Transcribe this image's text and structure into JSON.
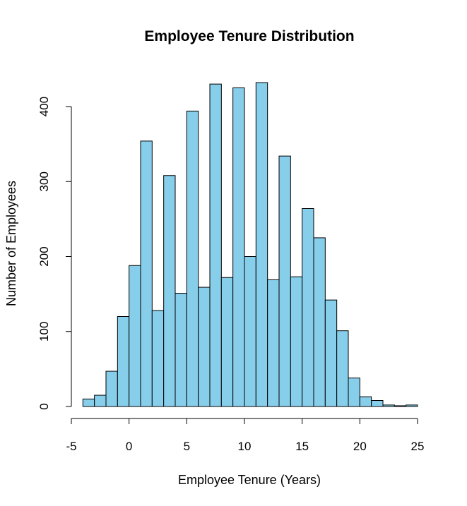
{
  "chart_data": {
    "type": "bar",
    "title": "Employee Tenure Distribution",
    "xlabel": "Employee Tenure (Years)",
    "ylabel": "Number of Employees",
    "bar_color": "#87ceeb",
    "xlim": [
      -5,
      25
    ],
    "ylim": [
      0,
      430
    ],
    "xticks": [
      -5,
      0,
      5,
      10,
      15,
      20,
      25
    ],
    "yticks": [
      0,
      100,
      200,
      300,
      400
    ],
    "bin_width": 1,
    "bins": [
      {
        "start": -4,
        "value": 10
      },
      {
        "start": -3,
        "value": 15
      },
      {
        "start": -2,
        "value": 47
      },
      {
        "start": -1,
        "value": 120
      },
      {
        "start": 0,
        "value": 188
      },
      {
        "start": 1,
        "value": 354
      },
      {
        "start": 2,
        "value": 128
      },
      {
        "start": 3,
        "value": 308
      },
      {
        "start": 4,
        "value": 151
      },
      {
        "start": 5,
        "value": 394
      },
      {
        "start": 6,
        "value": 159
      },
      {
        "start": 7,
        "value": 430
      },
      {
        "start": 8,
        "value": 172
      },
      {
        "start": 9,
        "value": 425
      },
      {
        "start": 10,
        "value": 200
      },
      {
        "start": 11,
        "value": 432
      },
      {
        "start": 12,
        "value": 169
      },
      {
        "start": 13,
        "value": 334
      },
      {
        "start": 14,
        "value": 173
      },
      {
        "start": 15,
        "value": 264
      },
      {
        "start": 16,
        "value": 225
      },
      {
        "start": 17,
        "value": 142
      },
      {
        "start": 18,
        "value": 101
      },
      {
        "start": 19,
        "value": 38
      },
      {
        "start": 20,
        "value": 13
      },
      {
        "start": 21,
        "value": 8
      },
      {
        "start": 22,
        "value": 2
      },
      {
        "start": 23,
        "value": 1
      },
      {
        "start": 24,
        "value": 2
      }
    ]
  }
}
